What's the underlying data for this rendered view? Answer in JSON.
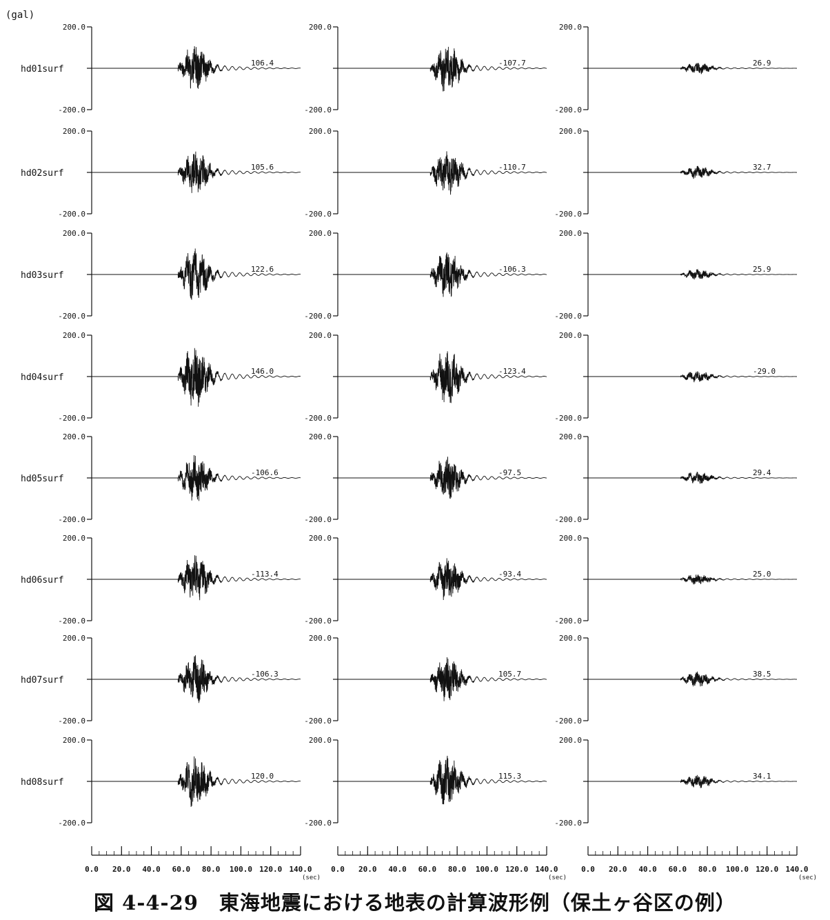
{
  "y_unit_label": "(gal)",
  "caption": "図 4-4-29　東海地震における地表の計算波形例（保土ヶ谷区の例）",
  "chart_data": {
    "type": "line",
    "y_tick_top": "200.0",
    "y_tick_bottom": "-200.0",
    "ylim": [
      -200,
      200
    ],
    "xlim": [
      0,
      140
    ],
    "x_ticks": [
      "0.0",
      "20.0",
      "40.0",
      "60.0",
      "80.0",
      "100.0",
      "120.0",
      "140.0"
    ],
    "x_unit": "(sec)",
    "stations": [
      "hd01surf",
      "hd02surf",
      "hd03surf",
      "hd04surf",
      "hd05surf",
      "hd06surf",
      "hd07surf",
      "hd08surf"
    ],
    "components": [
      {
        "peaks": [
          "106.4",
          "105.6",
          "122.6",
          "146.0",
          "-106.6",
          "-113.4",
          "-106.3",
          "120.0"
        ],
        "onset": 58,
        "amp": [
          0.52,
          0.5,
          0.6,
          0.72,
          0.55,
          0.56,
          0.54,
          0.6
        ]
      },
      {
        "peaks": [
          "-107.7",
          "-110.7",
          "-106.3",
          "-123.4",
          "-97.5",
          "-93.4",
          "105.7",
          "115.3"
        ],
        "onset": 62,
        "amp": [
          0.55,
          0.56,
          0.54,
          0.62,
          0.5,
          0.48,
          0.53,
          0.58
        ]
      },
      {
        "peaks": [
          "26.9",
          "32.7",
          "25.9",
          "-29.0",
          "29.4",
          "25.0",
          "38.5",
          "34.1"
        ],
        "onset": 62,
        "amp": [
          0.14,
          0.16,
          0.13,
          0.15,
          0.15,
          0.13,
          0.19,
          0.17
        ]
      }
    ]
  }
}
